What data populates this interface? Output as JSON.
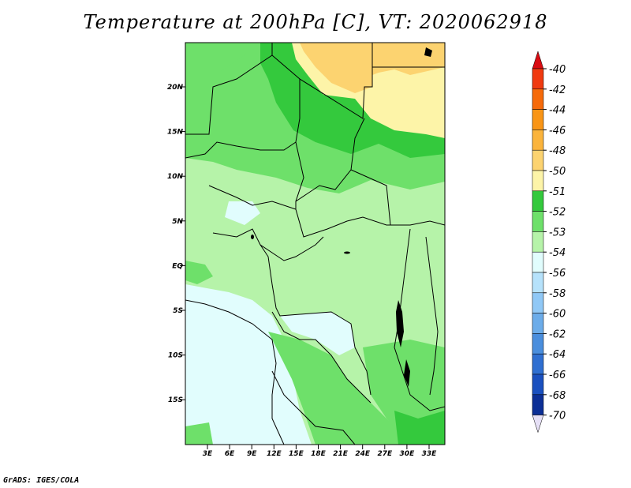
{
  "title": "Temperature at 200hPa [C], VT: 2020062918",
  "credit": "GrADS: IGES/COLA",
  "map": {
    "lat_labels": [
      "20N",
      "15N",
      "10N",
      "5N",
      "EQ",
      "5S",
      "10S",
      "15S"
    ],
    "lon_labels": [
      "3E",
      "6E",
      "9E",
      "12E",
      "15E",
      "18E",
      "21E",
      "24E",
      "27E",
      "30E",
      "33E"
    ]
  },
  "colorbar": {
    "levels": [
      {
        "label": "-40",
        "color": "#e0181a"
      },
      {
        "label": "-42",
        "color": "#f03a10"
      },
      {
        "label": "-44",
        "color": "#f66a0a"
      },
      {
        "label": "-46",
        "color": "#f99516"
      },
      {
        "label": "-48",
        "color": "#fbb43c"
      },
      {
        "label": "-50",
        "color": "#fcd370"
      },
      {
        "label": "-51",
        "color": "#fdf4a8"
      },
      {
        "label": "-52",
        "color": "#34c93d"
      },
      {
        "label": "-53",
        "color": "#6ee06a"
      },
      {
        "label": "-54",
        "color": "#b6f3a9"
      },
      {
        "label": "-56",
        "color": "#e1fdfd"
      },
      {
        "label": "-58",
        "color": "#b6e2fb"
      },
      {
        "label": "-60",
        "color": "#90c8f6"
      },
      {
        "label": "-62",
        "color": "#6cace9"
      },
      {
        "label": "-64",
        "color": "#4a8edd"
      },
      {
        "label": "-66",
        "color": "#2f6fd1"
      },
      {
        "label": "-68",
        "color": "#1a50bf"
      },
      {
        "label": "-70",
        "color": "#0c2f96"
      }
    ],
    "top_color": "#d90c12",
    "bottom_color": "#0a0a6e",
    "below_color": "#e6e0f6"
  }
}
